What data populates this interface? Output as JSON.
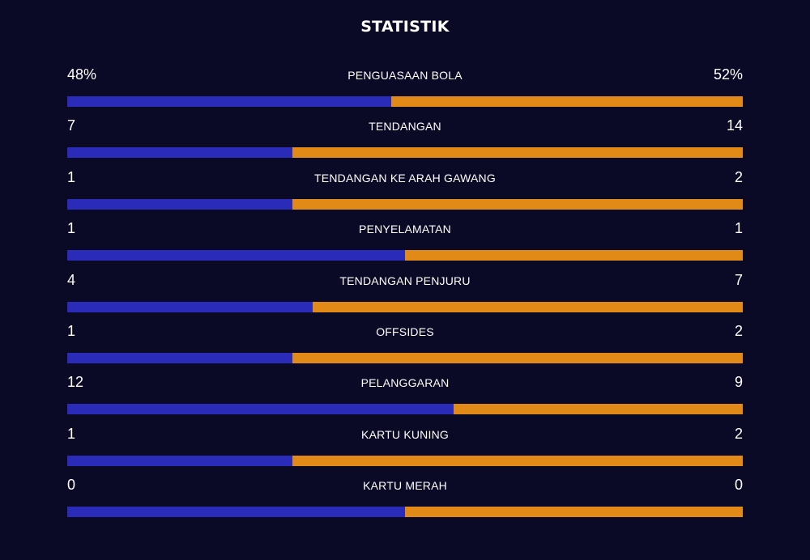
{
  "title": "STATISTIK",
  "colors": {
    "background": "#0a0a26",
    "home": "#2a2bb8",
    "away": "#e28a17"
  },
  "stats": [
    {
      "label": "PENGUASAAN BOLA",
      "home": "48%",
      "away": "52%",
      "home_value": 48,
      "away_value": 52
    },
    {
      "label": "TENDANGAN",
      "home": "7",
      "away": "14",
      "home_value": 7,
      "away_value": 14
    },
    {
      "label": "TENDANGAN KE ARAH GAWANG",
      "home": "1",
      "away": "2",
      "home_value": 1,
      "away_value": 2
    },
    {
      "label": "PENYELAMATAN",
      "home": "1",
      "away": "1",
      "home_value": 1,
      "away_value": 1
    },
    {
      "label": "TENDANGAN PENJURU",
      "home": "4",
      "away": "7",
      "home_value": 4,
      "away_value": 7
    },
    {
      "label": "OFFSIDES",
      "home": "1",
      "away": "2",
      "home_value": 1,
      "away_value": 2
    },
    {
      "label": "PELANGGARAN",
      "home": "12",
      "away": "9",
      "home_value": 12,
      "away_value": 9
    },
    {
      "label": "KARTU KUNING",
      "home": "1",
      "away": "2",
      "home_value": 1,
      "away_value": 2
    },
    {
      "label": "KARTU MERAH",
      "home": "0",
      "away": "0",
      "home_value": 0,
      "away_value": 0
    }
  ]
}
